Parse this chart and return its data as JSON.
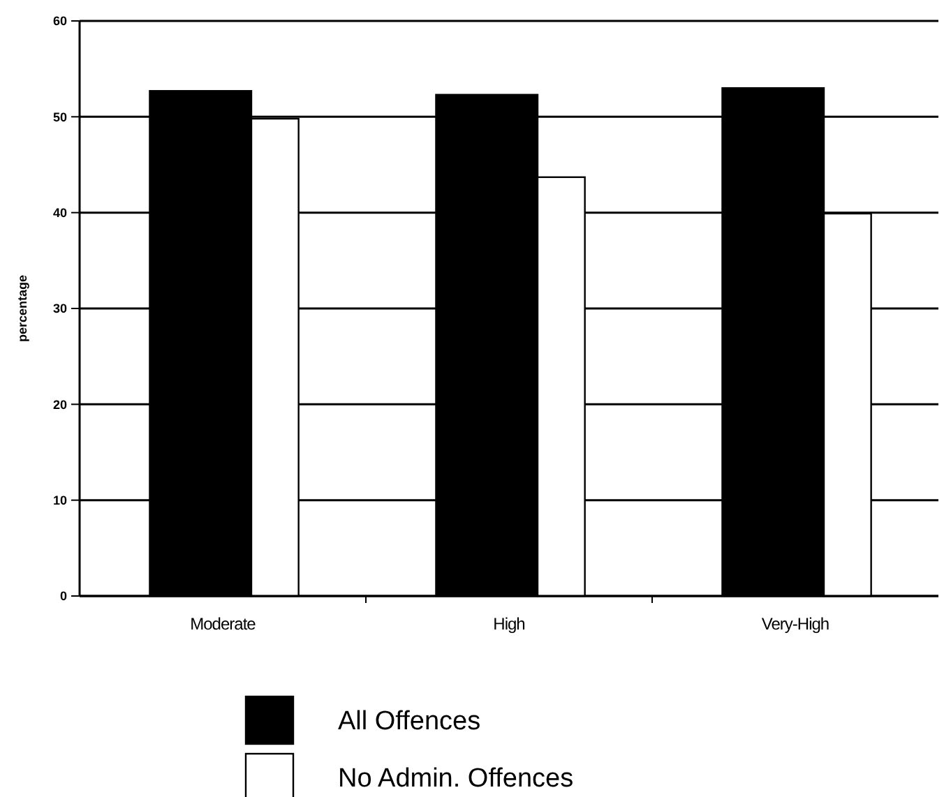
{
  "chart_data": {
    "type": "bar",
    "ylabel": "percentage",
    "categories": [
      "Moderate",
      "High",
      "Very-High"
    ],
    "series": [
      {
        "name": "All Offences",
        "color": "#000000",
        "values": [
          52.7,
          52.3,
          53.0
        ]
      },
      {
        "name": "No Admin. Offences",
        "color": "#ffffff",
        "values": [
          49.8,
          43.7,
          39.9
        ]
      }
    ],
    "ylim": [
      0,
      60
    ],
    "yticks": [
      0,
      10,
      20,
      30,
      40,
      50,
      60
    ],
    "grid": "y",
    "legend": "bottom"
  }
}
